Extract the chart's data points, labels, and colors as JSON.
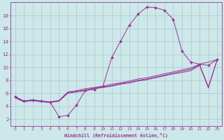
{
  "xlabel": "Windchill (Refroidissement éolien,°C)",
  "background_color": "#cce8e8",
  "grid_color": "#aab8cc",
  "line_color": "#993399",
  "spine_color": "#993399",
  "xlim": [
    -0.5,
    23.5
  ],
  "ylim": [
    1,
    20
  ],
  "xticks": [
    0,
    1,
    2,
    3,
    4,
    5,
    6,
    7,
    8,
    9,
    10,
    11,
    12,
    13,
    14,
    15,
    16,
    17,
    18,
    19,
    20,
    21,
    22,
    23
  ],
  "yticks": [
    2,
    4,
    6,
    8,
    10,
    12,
    14,
    16,
    18
  ],
  "curve1_x": [
    0,
    1,
    2,
    3,
    4,
    5,
    6,
    7,
    8,
    9,
    10,
    11,
    12,
    13,
    14,
    15,
    16,
    17,
    18,
    19,
    20,
    21,
    22,
    23
  ],
  "curve1_y": [
    5.5,
    4.8,
    5.0,
    4.8,
    4.6,
    2.4,
    2.6,
    4.2,
    6.5,
    6.6,
    7.1,
    11.5,
    14.0,
    16.5,
    18.2,
    19.3,
    19.2,
    18.8,
    17.4,
    12.5,
    10.8,
    10.5,
    10.3,
    11.2
  ],
  "curve2_x": [
    0,
    1,
    2,
    3,
    4,
    5,
    6,
    7,
    8,
    9,
    10,
    11,
    12,
    13,
    14,
    15,
    16,
    17,
    18,
    19,
    20,
    21,
    22,
    23
  ],
  "curve2_y": [
    5.5,
    4.8,
    5.0,
    4.8,
    4.7,
    4.9,
    6.2,
    6.4,
    6.7,
    6.9,
    7.1,
    7.4,
    7.6,
    7.9,
    8.2,
    8.4,
    8.7,
    9.0,
    9.3,
    9.6,
    9.9,
    10.5,
    10.8,
    11.2
  ],
  "curve3_x": [
    0,
    1,
    2,
    3,
    4,
    5,
    6,
    7,
    8,
    9,
    10,
    11,
    12,
    13,
    14,
    15,
    16,
    17,
    18,
    19,
    20,
    21,
    22,
    23
  ],
  "curve3_y": [
    5.4,
    4.7,
    4.9,
    4.7,
    4.6,
    4.8,
    6.1,
    6.3,
    6.5,
    6.8,
    7.0,
    7.2,
    7.5,
    7.7,
    8.0,
    8.2,
    8.5,
    8.8,
    9.1,
    9.4,
    9.7,
    10.4,
    7.0,
    11.2
  ],
  "curve4_x": [
    0,
    1,
    2,
    3,
    4,
    5,
    6,
    7,
    8,
    9,
    10,
    11,
    12,
    13,
    14,
    15,
    16,
    17,
    18,
    19,
    20,
    21,
    22,
    23
  ],
  "curve4_y": [
    5.3,
    4.7,
    4.9,
    4.7,
    4.6,
    4.8,
    6.0,
    6.2,
    6.4,
    6.7,
    6.9,
    7.1,
    7.4,
    7.6,
    7.9,
    8.1,
    8.4,
    8.7,
    9.0,
    9.2,
    9.5,
    10.3,
    6.8,
    11.2
  ]
}
